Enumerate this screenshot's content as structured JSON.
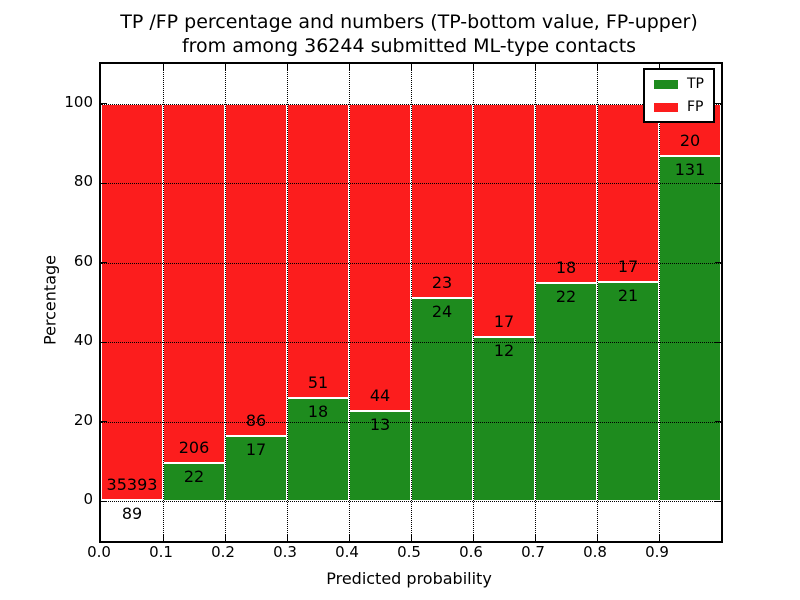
{
  "title": {
    "line1": "TP /FP percentage and numbers (TP-bottom value, FP-upper)",
    "line2": "from among 36244 submitted ML-type contacts"
  },
  "axes": {
    "xlabel": "Predicted probability",
    "ylabel": "Percentage",
    "xtick_labels": [
      "0.0",
      "0.1",
      "0.2",
      "0.3",
      "0.4",
      "0.5",
      "0.6",
      "0.7",
      "0.8",
      "0.9"
    ],
    "ytick_labels": [
      "0",
      "20",
      "40",
      "60",
      "80",
      "100"
    ]
  },
  "legend": {
    "items": [
      {
        "label": "TP",
        "color": "#1e8b1e"
      },
      {
        "label": "FP",
        "color": "#fc1d1d"
      }
    ]
  },
  "colors": {
    "tp": "#1e8b1e",
    "fp": "#fc1d1d",
    "bar_edge": "#ffffff",
    "grid": "#000000",
    "text": "#000000",
    "background": "#ffffff"
  },
  "chart_data": {
    "type": "bar",
    "stacked": true,
    "normalized_to_percent": true,
    "title": "TP /FP percentage and numbers (TP-bottom value, FP-upper) from among 36244 submitted ML-type contacts",
    "xlabel": "Predicted probability",
    "ylabel": "Percentage",
    "total_contacts": 36244,
    "xlim": [
      0.0,
      1.0
    ],
    "ylim": [
      -10,
      110
    ],
    "xticks": [
      0.0,
      0.1,
      0.2,
      0.3,
      0.4,
      0.5,
      0.6,
      0.7,
      0.8,
      0.9
    ],
    "yticks": [
      0,
      20,
      40,
      60,
      80,
      100
    ],
    "grid": true,
    "legend_position": "upper right",
    "categories": [
      "0.0-0.1",
      "0.1-0.2",
      "0.2-0.3",
      "0.3-0.4",
      "0.4-0.5",
      "0.5-0.6",
      "0.6-0.7",
      "0.7-0.8",
      "0.8-0.9",
      "0.9-1.0"
    ],
    "series": [
      {
        "name": "TP",
        "counts": [
          89,
          22,
          17,
          18,
          13,
          24,
          12,
          22,
          21,
          131
        ]
      },
      {
        "name": "FP",
        "counts": [
          35393,
          206,
          86,
          51,
          44,
          23,
          17,
          18,
          17,
          20
        ]
      }
    ],
    "tp_percent": [
      0.25,
      9.65,
      16.5,
      26.09,
      22.81,
      51.06,
      41.38,
      55.0,
      55.26,
      86.75
    ]
  }
}
